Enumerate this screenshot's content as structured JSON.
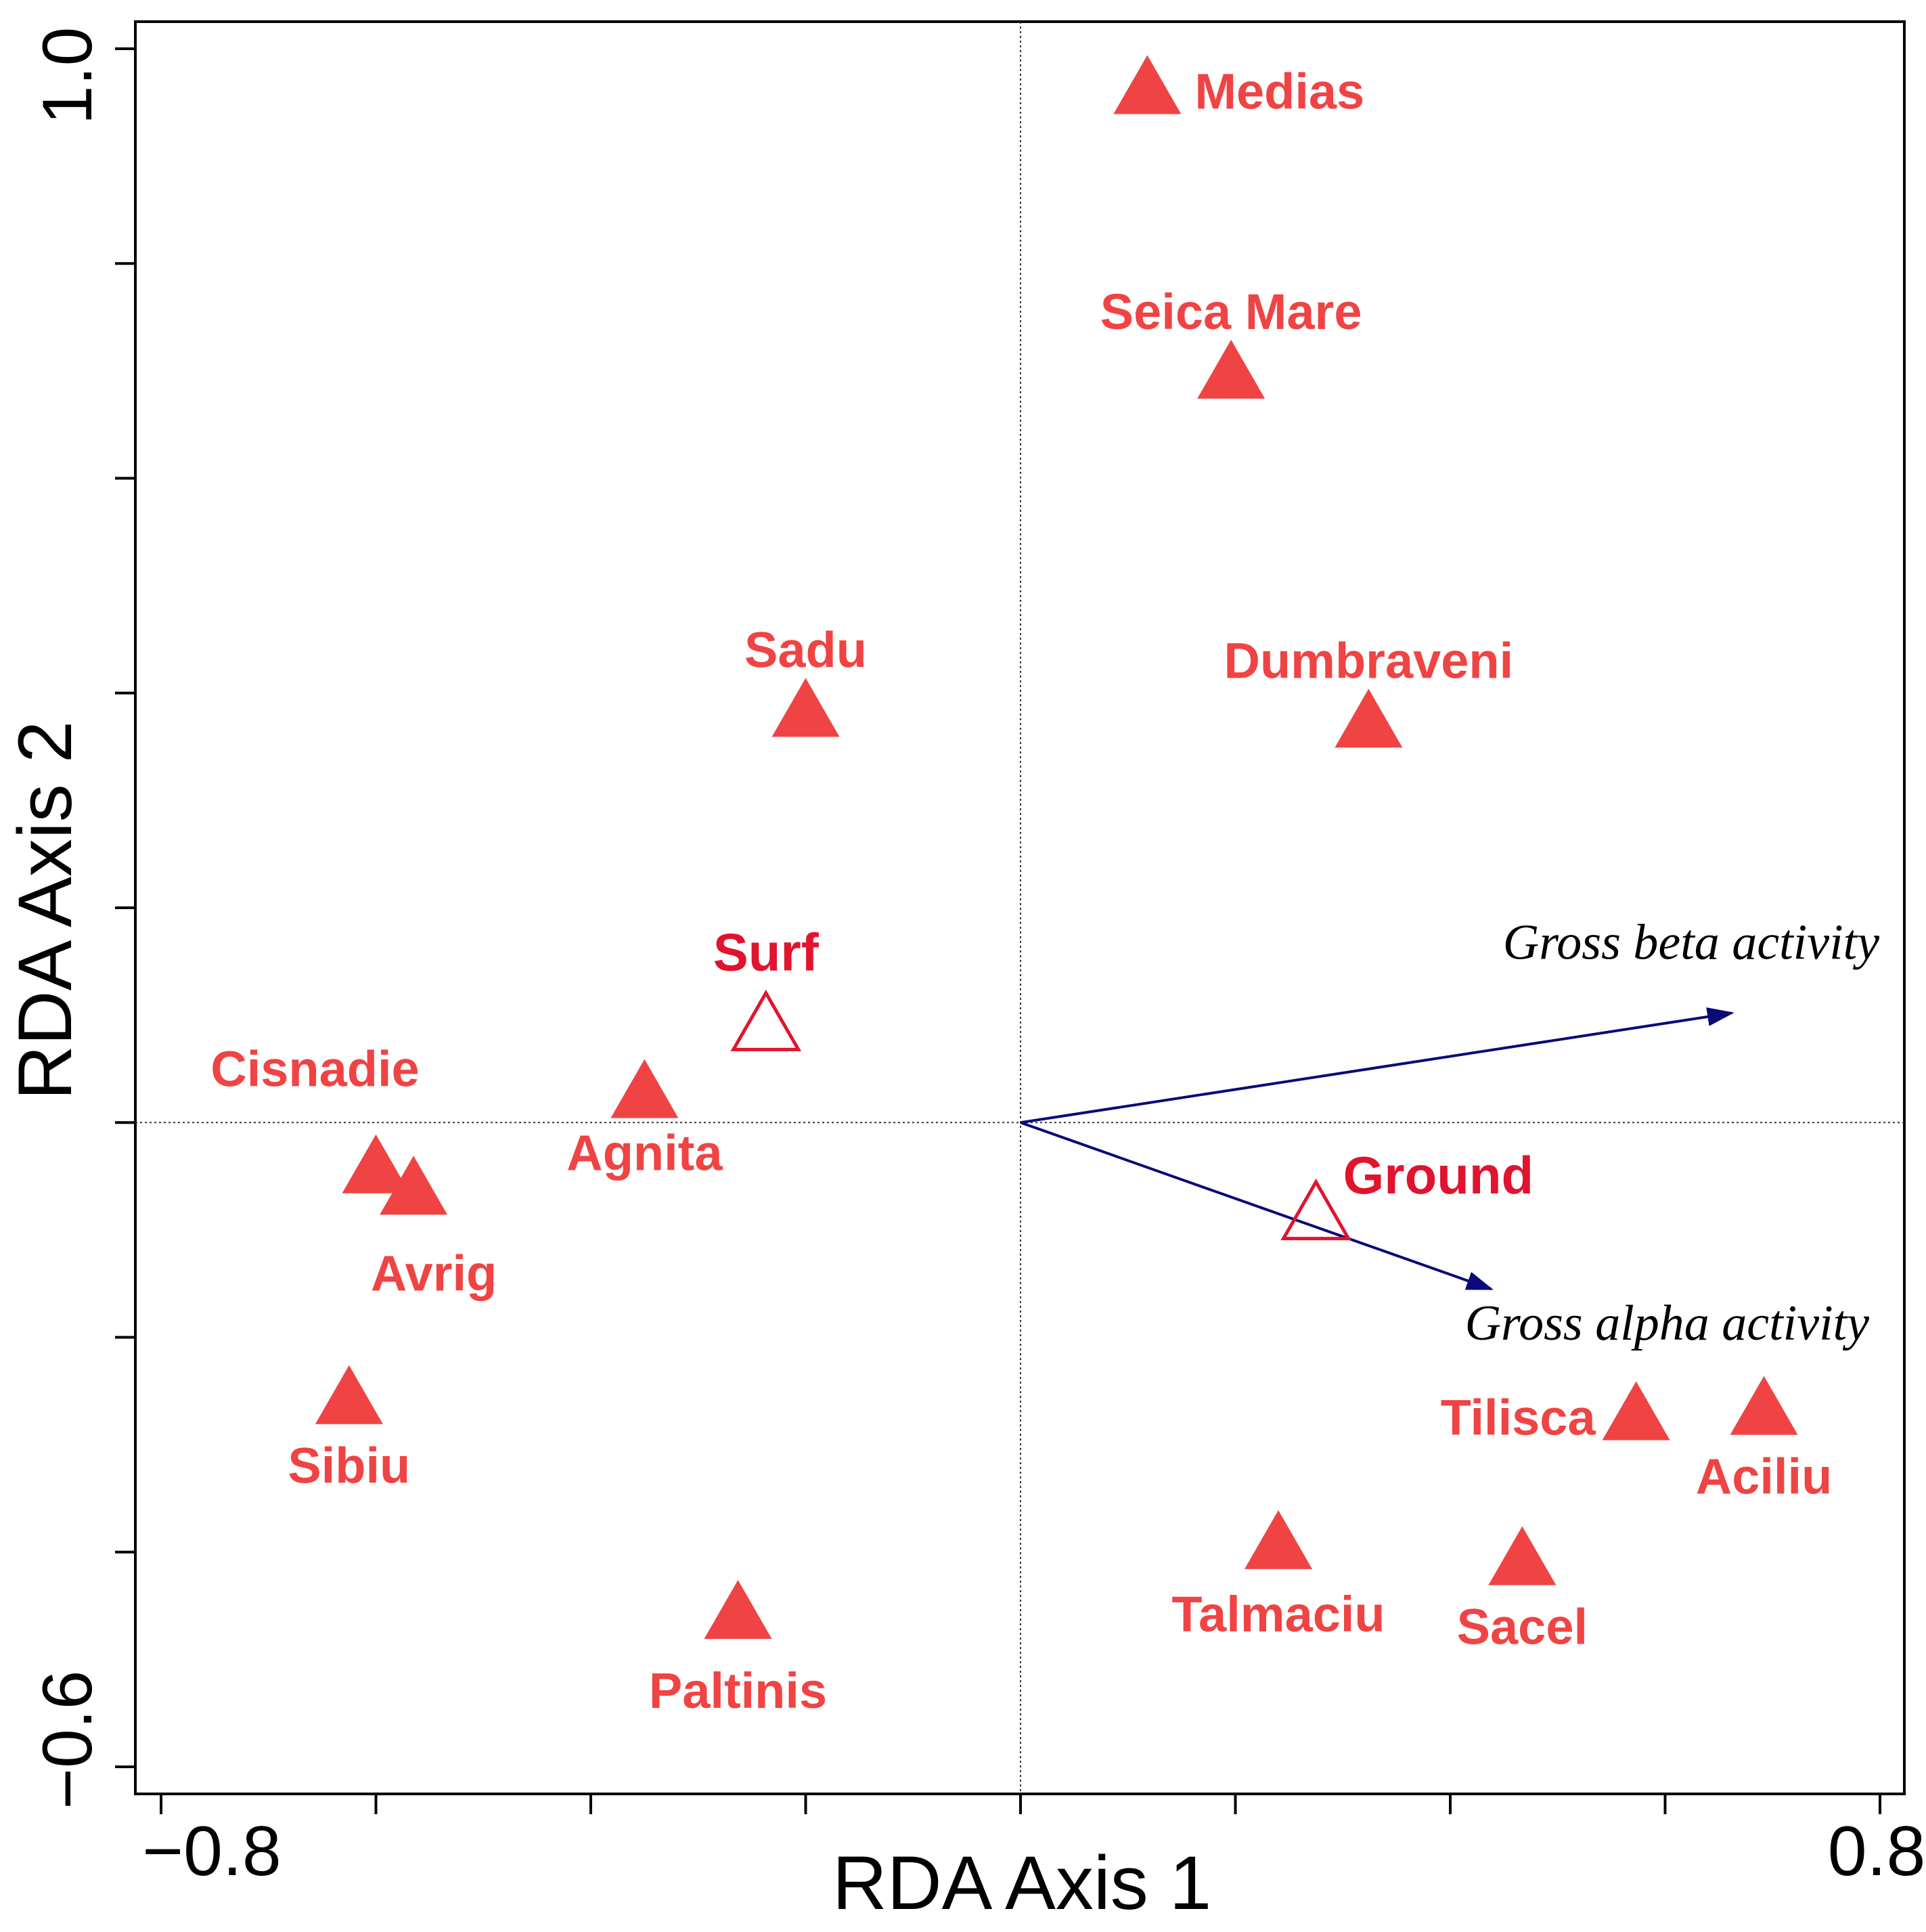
{
  "chart_data": {
    "type": "scatter",
    "xlabel": "RDA Axis 1",
    "ylabel": "RDA Axis 2",
    "xlim": [
      -0.8,
      0.8
    ],
    "ylim": [
      -0.6,
      1.0
    ],
    "x_tick_labels": [
      "−0.8",
      "0.8"
    ],
    "y_tick_labels": [
      "−0.6",
      "1.0"
    ],
    "x_ticks": [
      -0.8,
      -0.6,
      -0.4,
      -0.2,
      0.0,
      0.2,
      0.4,
      0.6,
      0.8
    ],
    "y_ticks": [
      -0.6,
      -0.4,
      -0.2,
      0.0,
      0.2,
      0.4,
      0.6,
      0.8,
      1.0
    ],
    "reference_lines": {
      "x": 0,
      "y": 0
    },
    "marker_color": "#f04343",
    "group_color": "#e0142e",
    "vector_color": "#0a0a78",
    "sites": [
      {
        "name": "Medias",
        "x": 0.118,
        "y": 0.96
      },
      {
        "name": "Seica Mare",
        "x": 0.196,
        "y": 0.695
      },
      {
        "name": "Sadu",
        "x": -0.2,
        "y": 0.38
      },
      {
        "name": "Dumbraveni",
        "x": 0.324,
        "y": 0.37
      },
      {
        "name": "Cisnadie",
        "x": -0.6,
        "y": -0.045
      },
      {
        "name": "Agnita",
        "x": -0.35,
        "y": 0.025
      },
      {
        "name": "Avrig",
        "x": -0.565,
        "y": -0.065
      },
      {
        "name": "Sibiu",
        "x": -0.625,
        "y": -0.26
      },
      {
        "name": "Paltinis",
        "x": -0.263,
        "y": -0.46
      },
      {
        "name": "Tilisca",
        "x": 0.573,
        "y": -0.275
      },
      {
        "name": "Aciliu",
        "x": 0.692,
        "y": -0.27
      },
      {
        "name": "Talmaciu",
        "x": 0.24,
        "y": -0.395
      },
      {
        "name": "Sacel",
        "x": 0.467,
        "y": -0.41
      }
    ],
    "groups": [
      {
        "name": "Surf",
        "x": -0.237,
        "y": 0.088
      },
      {
        "name": "Ground",
        "x": 0.275,
        "y": -0.088
      }
    ],
    "vectors": [
      {
        "name": "Gross beta activity",
        "x": 0.662,
        "y": 0.102
      },
      {
        "name": "Gross alpha activity",
        "x": 0.438,
        "y": -0.155
      }
    ]
  }
}
